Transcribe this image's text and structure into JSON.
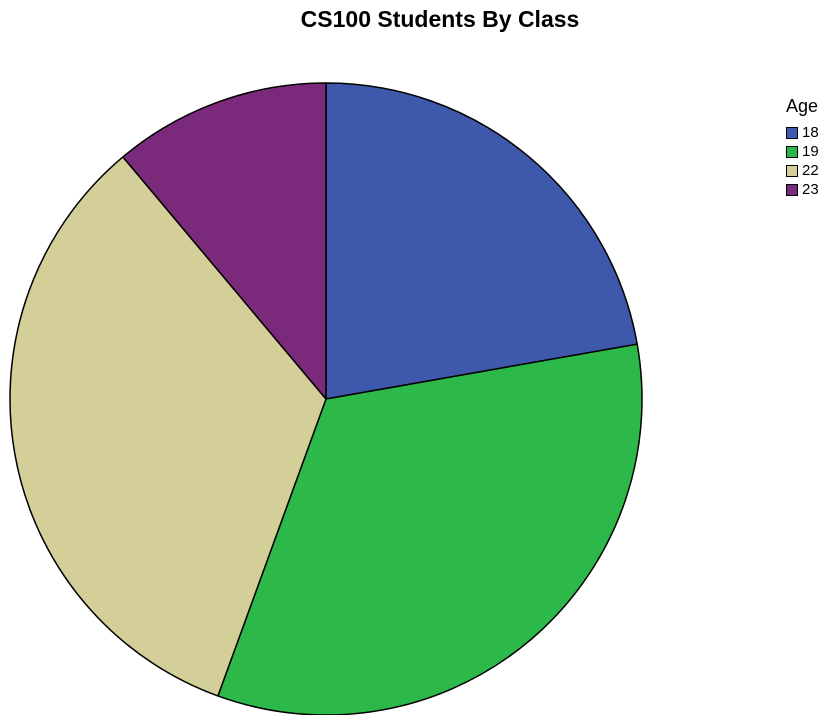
{
  "chart_data": {
    "type": "pie",
    "title": "CS100 Students By Class",
    "legend_title": "Age",
    "legend_position": "top-right",
    "categories": [
      "18",
      "19",
      "22",
      "23"
    ],
    "values": [
      22.2,
      33.3,
      33.3,
      11.1
    ],
    "colors": [
      "#3e58ac",
      "#2db84a",
      "#d4ce99",
      "#7b2a7b"
    ],
    "start_angle": "12 o'clock",
    "direction": "clockwise"
  }
}
